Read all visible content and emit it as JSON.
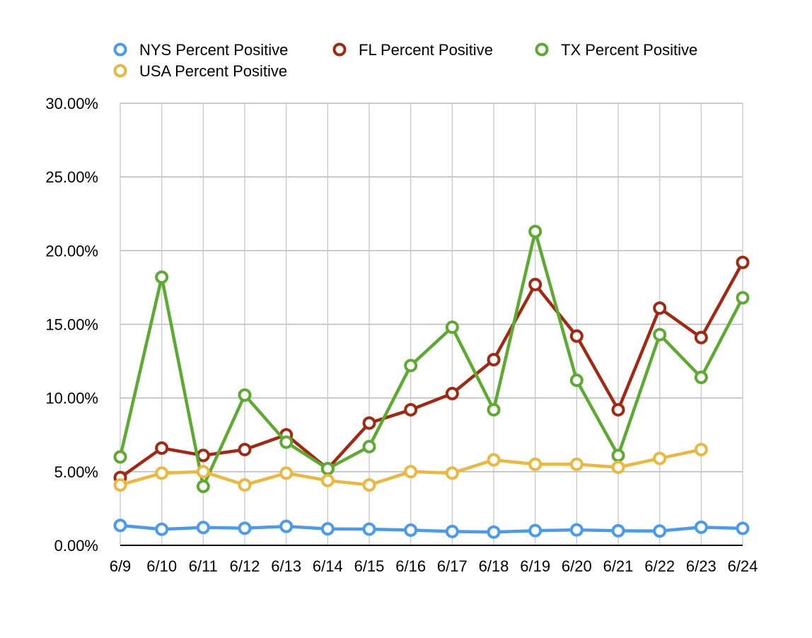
{
  "chart_data": {
    "type": "line",
    "title": "",
    "xlabel": "",
    "ylabel": "",
    "categories": [
      "6/9",
      "6/10",
      "6/11",
      "6/12",
      "6/13",
      "6/14",
      "6/15",
      "6/16",
      "6/17",
      "6/18",
      "6/19",
      "6/20",
      "6/21",
      "6/22",
      "6/23",
      "6/24"
    ],
    "ylim": [
      0,
      30
    ],
    "yticks": [
      0,
      5,
      10,
      15,
      20,
      25,
      30
    ],
    "ytick_labels": [
      "0.00%",
      "5.00%",
      "10.00%",
      "15.00%",
      "20.00%",
      "25.00%",
      "30.00%"
    ],
    "grid": true,
    "legend_position": "top",
    "series": [
      {
        "name": "NYS Percent Positive",
        "color": "#4A9BEF",
        "values": [
          1.35,
          1.09,
          1.21,
          1.16,
          1.29,
          1.12,
          1.1,
          1.03,
          0.94,
          0.9,
          1.0,
          1.05,
          0.99,
          0.97,
          1.23,
          1.15
        ]
      },
      {
        "name": "FL Percent Positive",
        "color": "#A32812",
        "values": [
          4.6,
          6.6,
          6.1,
          6.5,
          7.5,
          5.2,
          8.3,
          9.2,
          10.3,
          12.6,
          17.7,
          14.2,
          9.2,
          16.1,
          14.1,
          19.2
        ]
      },
      {
        "name": "TX Percent Positive",
        "color": "#5DAA30",
        "values": [
          6.0,
          18.2,
          4.0,
          10.2,
          7.0,
          5.2,
          6.7,
          12.2,
          14.8,
          9.2,
          21.3,
          11.2,
          6.1,
          14.3,
          11.4,
          16.8
        ]
      },
      {
        "name": "USA Percent Positive",
        "color": "#EBB73D",
        "values": [
          4.1,
          4.9,
          5.0,
          4.1,
          4.9,
          4.4,
          4.1,
          5.0,
          4.9,
          5.8,
          5.5,
          5.5,
          5.3,
          5.9,
          6.5,
          null
        ]
      }
    ]
  }
}
